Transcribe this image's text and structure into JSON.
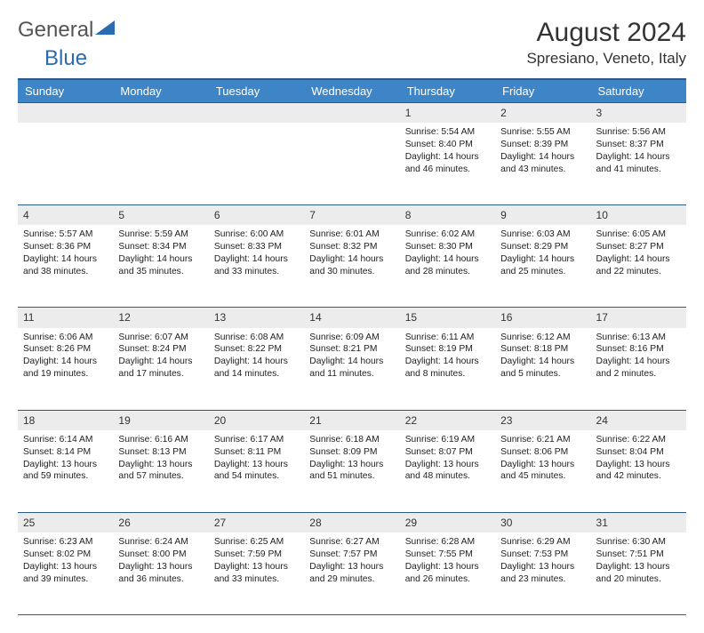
{
  "logo": {
    "text1": "General",
    "text2": "Blue",
    "color1": "#666666",
    "color2": "#2b6bb0"
  },
  "title": "August 2024",
  "location": "Spresiano, Veneto, Italy",
  "headers": [
    "Sunday",
    "Monday",
    "Tuesday",
    "Wednesday",
    "Thursday",
    "Friday",
    "Saturday"
  ],
  "header_bg": "#3d85c6",
  "header_border": "#2b5a89",
  "daynum_bg": "#ececec",
  "weeks": [
    {
      "nums": [
        "",
        "",
        "",
        "",
        "1",
        "2",
        "3"
      ],
      "cells": [
        "",
        "",
        "",
        "",
        "Sunrise: 5:54 AM\nSunset: 8:40 PM\nDaylight: 14 hours and 46 minutes.",
        "Sunrise: 5:55 AM\nSunset: 8:39 PM\nDaylight: 14 hours and 43 minutes.",
        "Sunrise: 5:56 AM\nSunset: 8:37 PM\nDaylight: 14 hours and 41 minutes."
      ]
    },
    {
      "nums": [
        "4",
        "5",
        "6",
        "7",
        "8",
        "9",
        "10"
      ],
      "cells": [
        "Sunrise: 5:57 AM\nSunset: 8:36 PM\nDaylight: 14 hours and 38 minutes.",
        "Sunrise: 5:59 AM\nSunset: 8:34 PM\nDaylight: 14 hours and 35 minutes.",
        "Sunrise: 6:00 AM\nSunset: 8:33 PM\nDaylight: 14 hours and 33 minutes.",
        "Sunrise: 6:01 AM\nSunset: 8:32 PM\nDaylight: 14 hours and 30 minutes.",
        "Sunrise: 6:02 AM\nSunset: 8:30 PM\nDaylight: 14 hours and 28 minutes.",
        "Sunrise: 6:03 AM\nSunset: 8:29 PM\nDaylight: 14 hours and 25 minutes.",
        "Sunrise: 6:05 AM\nSunset: 8:27 PM\nDaylight: 14 hours and 22 minutes."
      ]
    },
    {
      "nums": [
        "11",
        "12",
        "13",
        "14",
        "15",
        "16",
        "17"
      ],
      "cells": [
        "Sunrise: 6:06 AM\nSunset: 8:26 PM\nDaylight: 14 hours and 19 minutes.",
        "Sunrise: 6:07 AM\nSunset: 8:24 PM\nDaylight: 14 hours and 17 minutes.",
        "Sunrise: 6:08 AM\nSunset: 8:22 PM\nDaylight: 14 hours and 14 minutes.",
        "Sunrise: 6:09 AM\nSunset: 8:21 PM\nDaylight: 14 hours and 11 minutes.",
        "Sunrise: 6:11 AM\nSunset: 8:19 PM\nDaylight: 14 hours and 8 minutes.",
        "Sunrise: 6:12 AM\nSunset: 8:18 PM\nDaylight: 14 hours and 5 minutes.",
        "Sunrise: 6:13 AM\nSunset: 8:16 PM\nDaylight: 14 hours and 2 minutes."
      ]
    },
    {
      "nums": [
        "18",
        "19",
        "20",
        "21",
        "22",
        "23",
        "24"
      ],
      "cells": [
        "Sunrise: 6:14 AM\nSunset: 8:14 PM\nDaylight: 13 hours and 59 minutes.",
        "Sunrise: 6:16 AM\nSunset: 8:13 PM\nDaylight: 13 hours and 57 minutes.",
        "Sunrise: 6:17 AM\nSunset: 8:11 PM\nDaylight: 13 hours and 54 minutes.",
        "Sunrise: 6:18 AM\nSunset: 8:09 PM\nDaylight: 13 hours and 51 minutes.",
        "Sunrise: 6:19 AM\nSunset: 8:07 PM\nDaylight: 13 hours and 48 minutes.",
        "Sunrise: 6:21 AM\nSunset: 8:06 PM\nDaylight: 13 hours and 45 minutes.",
        "Sunrise: 6:22 AM\nSunset: 8:04 PM\nDaylight: 13 hours and 42 minutes."
      ]
    },
    {
      "nums": [
        "25",
        "26",
        "27",
        "28",
        "29",
        "30",
        "31"
      ],
      "cells": [
        "Sunrise: 6:23 AM\nSunset: 8:02 PM\nDaylight: 13 hours and 39 minutes.",
        "Sunrise: 6:24 AM\nSunset: 8:00 PM\nDaylight: 13 hours and 36 minutes.",
        "Sunrise: 6:25 AM\nSunset: 7:59 PM\nDaylight: 13 hours and 33 minutes.",
        "Sunrise: 6:27 AM\nSunset: 7:57 PM\nDaylight: 13 hours and 29 minutes.",
        "Sunrise: 6:28 AM\nSunset: 7:55 PM\nDaylight: 13 hours and 26 minutes.",
        "Sunrise: 6:29 AM\nSunset: 7:53 PM\nDaylight: 13 hours and 23 minutes.",
        "Sunrise: 6:30 AM\nSunset: 7:51 PM\nDaylight: 13 hours and 20 minutes."
      ]
    }
  ]
}
